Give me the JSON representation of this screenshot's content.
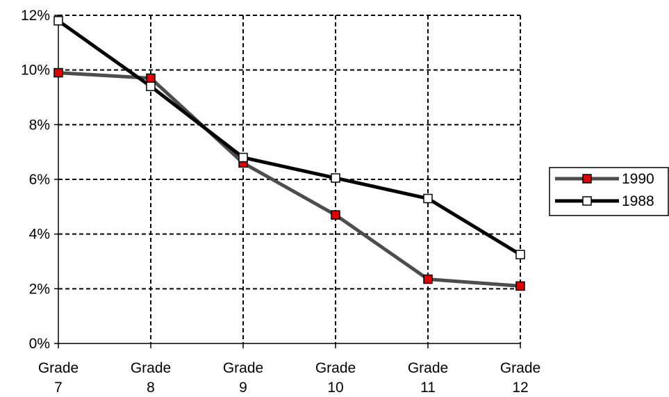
{
  "chart_data": {
    "type": "line",
    "title": "",
    "xlabel": "",
    "ylabel": "",
    "categories": [
      [
        "Grade",
        "7"
      ],
      [
        "Grade",
        "8"
      ],
      [
        "Grade",
        "9"
      ],
      [
        "Grade",
        "10"
      ],
      [
        "Grade",
        "11"
      ],
      [
        "Grade",
        "12"
      ]
    ],
    "y_ticks": [
      "0%",
      "2%",
      "4%",
      "6%",
      "8%",
      "10%",
      "12%"
    ],
    "ylim": [
      0,
      12
    ],
    "grid": true,
    "legend_position": "right",
    "series": [
      {
        "name": "1990",
        "values": [
          9.9,
          9.7,
          6.6,
          4.7,
          2.35,
          2.1
        ],
        "line_color": "#4d4d4d",
        "marker_fill": "#dd0000"
      },
      {
        "name": "1988",
        "values": [
          11.8,
          9.4,
          6.8,
          6.05,
          5.3,
          3.25
        ],
        "line_color": "#000000",
        "marker_fill": "#ffffff"
      }
    ]
  }
}
